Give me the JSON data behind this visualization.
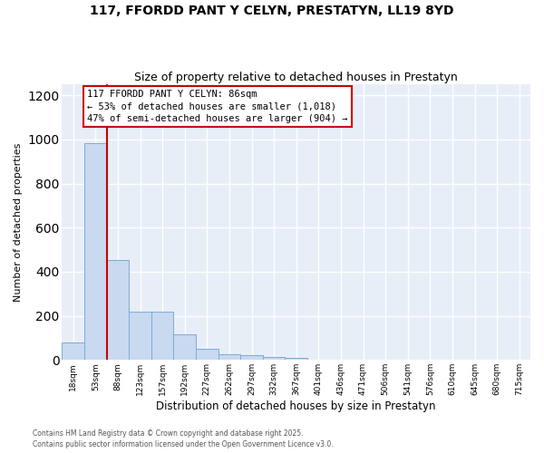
{
  "title_line1": "117, FFORDD PANT Y CELYN, PRESTATYN, LL19 8YD",
  "title_line2": "Size of property relative to detached houses in Prestatyn",
  "xlabel": "Distribution of detached houses by size in Prestatyn",
  "ylabel": "Number of detached properties",
  "bar_color": "#c8d9f0",
  "bar_edge_color": "#7aadd4",
  "bins": [
    "18sqm",
    "53sqm",
    "88sqm",
    "123sqm",
    "157sqm",
    "192sqm",
    "227sqm",
    "262sqm",
    "297sqm",
    "332sqm",
    "367sqm",
    "401sqm",
    "436sqm",
    "471sqm",
    "506sqm",
    "541sqm",
    "576sqm",
    "610sqm",
    "645sqm",
    "680sqm",
    "715sqm"
  ],
  "bar_heights": [
    80,
    985,
    455,
    220,
    220,
    115,
    50,
    25,
    22,
    15,
    10,
    0,
    0,
    0,
    0,
    0,
    0,
    0,
    0,
    0,
    0
  ],
  "red_line_bin": 2,
  "annotation_title": "117 FFORDD PANT Y CELYN: 86sqm",
  "annotation_line2": "← 53% of detached houses are smaller (1,018)",
  "annotation_line3": "47% of semi-detached houses are larger (904) →",
  "ylim": [
    0,
    1250
  ],
  "yticks": [
    0,
    200,
    400,
    600,
    800,
    1000,
    1200
  ],
  "bg_color": "#e8eef8",
  "grid_color": "#ffffff",
  "footer_line1": "Contains HM Land Registry data © Crown copyright and database right 2025.",
  "footer_line2": "Contains public sector information licensed under the Open Government Licence v3.0."
}
